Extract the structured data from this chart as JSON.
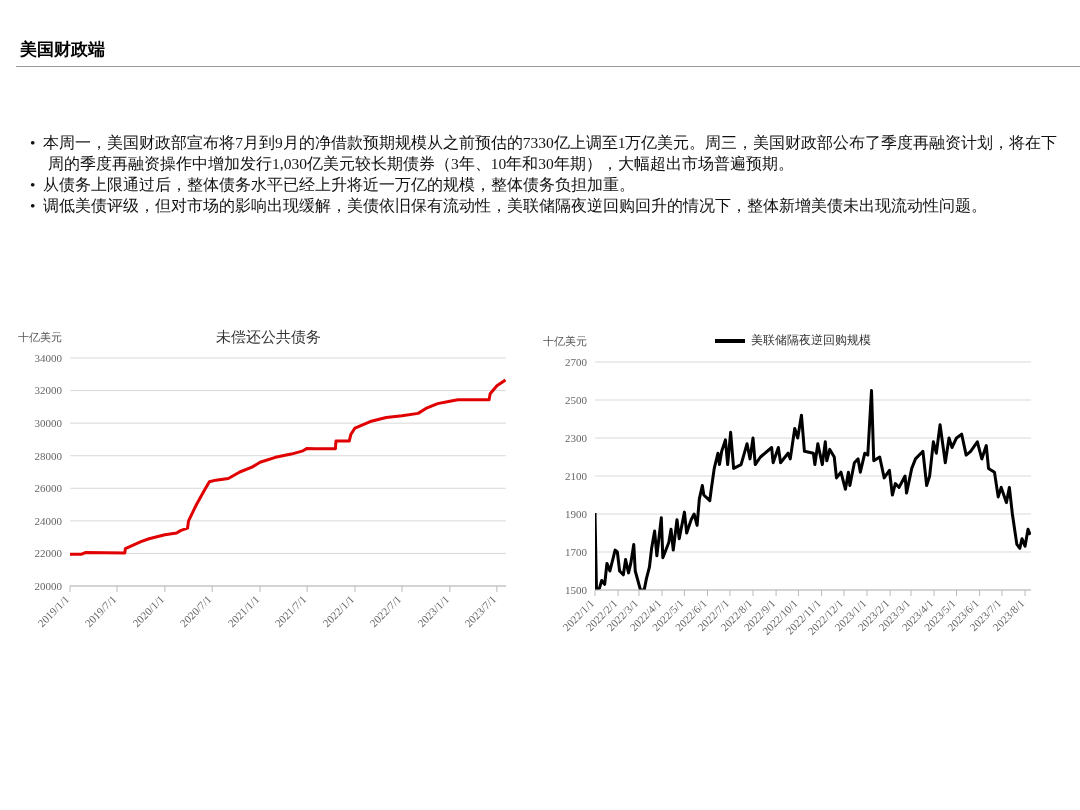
{
  "chart_data": [
    {
      "type": "other",
      "title": "美国财政端",
      "annotations": [
        "•  本周一，美国财政部宣布将7月到9月的净借款预期规模从之前预估的7330亿上调至1万亿美元。周三，美国财政部公布了季度再融资计划，将在下周的季度再融资操作中增加发行1,030亿美元较长期债券（3年、10年和30年期），大幅超出市场普遍预期。",
        "•  从债务上限通过后，整体债务水平已经上升将近一万亿的规模，整体债务负担加重。",
        "•  调低美债评级，但对市场的影响出现缓解，美债依旧保有流动性，美联储隔夜逆回购回升的情况下，整体新增美债未出现流动性问题。"
      ]
    },
    {
      "type": "line",
      "title": "未偿还公共债务",
      "ylabel": "十亿美元",
      "grid": "y",
      "legend": false,
      "marker": "none",
      "line_style": "solid",
      "xlim": [
        "2019-01-01",
        "2023-08-05"
      ],
      "xticks": [
        {
          "value": "2019-01-01",
          "label": "2019/1/1"
        },
        {
          "value": "2019-07-01",
          "label": "2019/7/1"
        },
        {
          "value": "2020-01-01",
          "label": "2020/1/1"
        },
        {
          "value": "2020-07-01",
          "label": "2020/7/1"
        },
        {
          "value": "2021-01-01",
          "label": "2021/1/1"
        },
        {
          "value": "2021-07-01",
          "label": "2021/7/1"
        },
        {
          "value": "2022-01-01",
          "label": "2022/1/1"
        },
        {
          "value": "2022-07-01",
          "label": "2022/7/1"
        },
        {
          "value": "2023-01-01",
          "label": "2023/1/1"
        },
        {
          "value": "2023-07-01",
          "label": "2023/7/1"
        }
      ],
      "ylim": [
        20000,
        34000
      ],
      "yticks": [
        20000,
        22000,
        24000,
        26000,
        28000,
        30000,
        32000,
        34000
      ],
      "x": [
        "2019-01-01",
        "2019-02-15",
        "2019-03-01",
        "2019-07-31",
        "2019-08-02",
        "2019-10-01",
        "2019-11-01",
        "2020-01-01",
        "2020-02-15",
        "2020-03-01",
        "2020-03-28",
        "2020-04-01",
        "2020-05-01",
        "2020-06-01",
        "2020-06-20",
        "2020-07-15",
        "2020-09-01",
        "2020-10-15",
        "2020-12-01",
        "2021-01-01",
        "2021-03-01",
        "2021-05-01",
        "2021-06-15",
        "2021-07-01",
        "2021-07-31",
        "2021-10-18",
        "2021-10-20",
        "2021-12-10",
        "2021-12-16",
        "2022-01-01",
        "2022-03-01",
        "2022-05-01",
        "2022-07-01",
        "2022-09-01",
        "2022-10-01",
        "2022-11-15",
        "2023-01-01",
        "2023-02-01",
        "2023-06-01",
        "2023-06-05",
        "2023-07-01",
        "2023-08-03"
      ],
      "series": [
        {
          "color": "#e00000",
          "values": [
            21950,
            21950,
            22050,
            22030,
            22300,
            22720,
            22900,
            23150,
            23250,
            23400,
            23550,
            24000,
            24990,
            25880,
            26400,
            26500,
            26600,
            27000,
            27300,
            27600,
            27900,
            28100,
            28300,
            28450,
            28430,
            28430,
            28900,
            28900,
            29300,
            29700,
            30100,
            30350,
            30450,
            30600,
            30900,
            31200,
            31350,
            31430,
            31430,
            31800,
            32300,
            32650
          ]
        }
      ]
    },
    {
      "type": "line",
      "ylabel": "十亿美元",
      "grid": "y",
      "legend": "top",
      "marker": "none",
      "line_style": "solid",
      "xlim": [
        "2022-01-01",
        "2023-08-09"
      ],
      "xticks": [
        {
          "value": "2022-01-01",
          "label": "2022/1/1"
        },
        {
          "value": "2022-02-01",
          "label": "2022/2/1"
        },
        {
          "value": "2022-03-01",
          "label": "2022/3/1"
        },
        {
          "value": "2022-04-01",
          "label": "2022/4/1"
        },
        {
          "value": "2022-05-01",
          "label": "2022/5/1"
        },
        {
          "value": "2022-06-01",
          "label": "2022/6/1"
        },
        {
          "value": "2022-07-01",
          "label": "2022/7/1"
        },
        {
          "value": "2022-08-01",
          "label": "2022/8/1"
        },
        {
          "value": "2022-09-01",
          "label": "2022/9/1"
        },
        {
          "value": "2022-10-01",
          "label": "2022/10/1"
        },
        {
          "value": "2022-11-01",
          "label": "2022/11/1"
        },
        {
          "value": "2022-12-01",
          "label": "2022/12/1"
        },
        {
          "value": "2023-01-01",
          "label": "2023/1/1"
        },
        {
          "value": "2023-02-01",
          "label": "2023/2/1"
        },
        {
          "value": "2023-03-01",
          "label": "2023/3/1"
        },
        {
          "value": "2023-04-01",
          "label": "2023/4/1"
        },
        {
          "value": "2023-05-01",
          "label": "2023/5/1"
        },
        {
          "value": "2023-06-01",
          "label": "2023/6/1"
        },
        {
          "value": "2023-07-01",
          "label": "2023/7/1"
        },
        {
          "value": "2023-08-01",
          "label": "2023/8/1"
        }
      ],
      "ylim": [
        1500,
        2700
      ],
      "yticks": [
        1500,
        1700,
        1900,
        2100,
        2300,
        2500,
        2700
      ],
      "x": [
        "2022-01-01",
        "2022-01-03",
        "2022-01-07",
        "2022-01-10",
        "2022-01-14",
        "2022-01-17",
        "2022-01-21",
        "2022-01-28",
        "2022-01-31",
        "2022-02-03",
        "2022-02-08",
        "2022-02-11",
        "2022-02-15",
        "2022-02-18",
        "2022-02-22",
        "2022-02-24",
        "2022-03-03",
        "2022-03-08",
        "2022-03-11",
        "2022-03-15",
        "2022-03-18",
        "2022-03-22",
        "2022-03-25",
        "2022-03-31",
        "2022-04-02",
        "2022-04-10",
        "2022-04-13",
        "2022-04-16",
        "2022-04-21",
        "2022-04-24",
        "2022-05-01",
        "2022-05-04",
        "2022-05-10",
        "2022-05-14",
        "2022-05-18",
        "2022-05-21",
        "2022-05-25",
        "2022-05-27",
        "2022-06-04",
        "2022-06-06",
        "2022-06-10",
        "2022-06-15",
        "2022-06-17",
        "2022-06-20",
        "2022-06-25",
        "2022-06-28",
        "2022-07-02",
        "2022-07-06",
        "2022-07-16",
        "2022-07-24",
        "2022-07-28",
        "2022-08-01",
        "2022-08-04",
        "2022-08-11",
        "2022-08-26",
        "2022-08-28",
        "2022-09-04",
        "2022-09-07",
        "2022-09-17",
        "2022-09-20",
        "2022-09-26",
        "2022-09-30",
        "2022-10-05",
        "2022-10-09",
        "2022-10-21",
        "2022-10-23",
        "2022-10-27",
        "2022-11-02",
        "2022-11-06",
        "2022-11-08",
        "2022-11-12",
        "2022-11-18",
        "2022-11-21",
        "2022-11-27",
        "2022-12-03",
        "2022-12-07",
        "2022-12-09",
        "2022-12-15",
        "2022-12-20",
        "2022-12-23",
        "2022-12-29",
        "2023-01-02",
        "2023-01-07",
        "2023-01-10",
        "2023-01-18",
        "2023-01-24",
        "2023-01-31",
        "2023-02-04",
        "2023-02-08",
        "2023-02-13",
        "2023-02-21",
        "2023-02-23",
        "2023-03-02",
        "2023-03-07",
        "2023-03-17",
        "2023-03-22",
        "2023-03-26",
        "2023-03-31",
        "2023-04-04",
        "2023-04-09",
        "2023-04-16",
        "2023-04-21",
        "2023-04-25",
        "2023-05-01",
        "2023-05-08",
        "2023-05-14",
        "2023-05-20",
        "2023-05-29",
        "2023-06-04",
        "2023-06-10",
        "2023-06-13",
        "2023-06-21",
        "2023-06-26",
        "2023-06-30",
        "2023-07-07",
        "2023-07-11",
        "2023-07-15",
        "2023-07-18",
        "2023-07-21",
        "2023-07-25",
        "2023-07-28",
        "2023-08-01",
        "2023-08-05",
        "2023-08-08"
      ],
      "series": [
        {
          "name": "美联储隔夜逆回购规模",
          "color": "#000000",
          "values": [
            1905,
            1500,
            1510,
            1550,
            1530,
            1640,
            1600,
            1710,
            1700,
            1600,
            1580,
            1660,
            1590,
            1640,
            1740,
            1600,
            1500,
            1500,
            1560,
            1620,
            1720,
            1810,
            1680,
            1880,
            1670,
            1750,
            1820,
            1710,
            1870,
            1770,
            1910,
            1800,
            1870,
            1900,
            1840,
            1980,
            2050,
            2000,
            1970,
            2030,
            2140,
            2220,
            2160,
            2230,
            2290,
            2160,
            2330,
            2140,
            2160,
            2270,
            2190,
            2300,
            2160,
            2200,
            2250,
            2170,
            2250,
            2170,
            2220,
            2190,
            2350,
            2300,
            2420,
            2230,
            2220,
            2160,
            2270,
            2160,
            2280,
            2180,
            2240,
            2200,
            2090,
            2120,
            2030,
            2120,
            2050,
            2170,
            2190,
            2120,
            2220,
            2210,
            2550,
            2180,
            2200,
            2090,
            2130,
            2000,
            2060,
            2040,
            2100,
            2010,
            2140,
            2190,
            2230,
            2050,
            2100,
            2280,
            2220,
            2370,
            2170,
            2300,
            2250,
            2300,
            2320,
            2210,
            2230,
            2280,
            2190,
            2260,
            2140,
            2120,
            1990,
            2040,
            1960,
            2040,
            1900,
            1820,
            1740,
            1720,
            1770,
            1730,
            1820,
            1790
          ]
        }
      ]
    }
  ]
}
